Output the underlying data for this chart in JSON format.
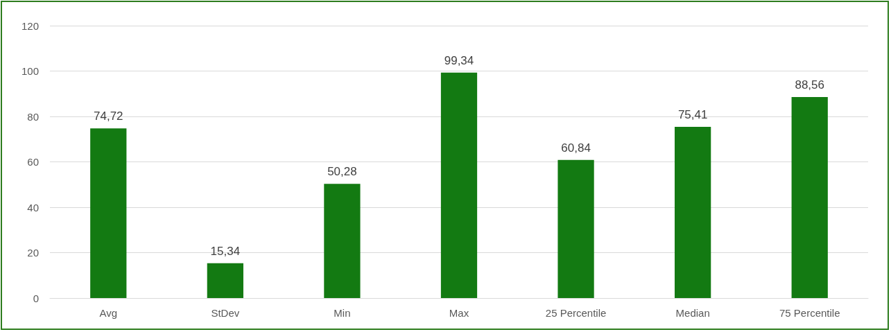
{
  "chart_data": {
    "type": "bar",
    "categories": [
      "Avg",
      "StDev",
      "Min",
      "Max",
      "25 Percentile",
      "Median",
      "75 Percentile"
    ],
    "values": [
      74.72,
      15.34,
      50.28,
      99.34,
      60.84,
      75.41,
      88.56
    ],
    "value_labels": [
      "74,72",
      "15,34",
      "50,28",
      "99,34",
      "60,84",
      "75,41",
      "88,56"
    ],
    "color": "#137a12",
    "ylim": [
      0,
      120
    ],
    "yticks": [
      0,
      20,
      40,
      60,
      80,
      100,
      120
    ],
    "grid": "y"
  }
}
